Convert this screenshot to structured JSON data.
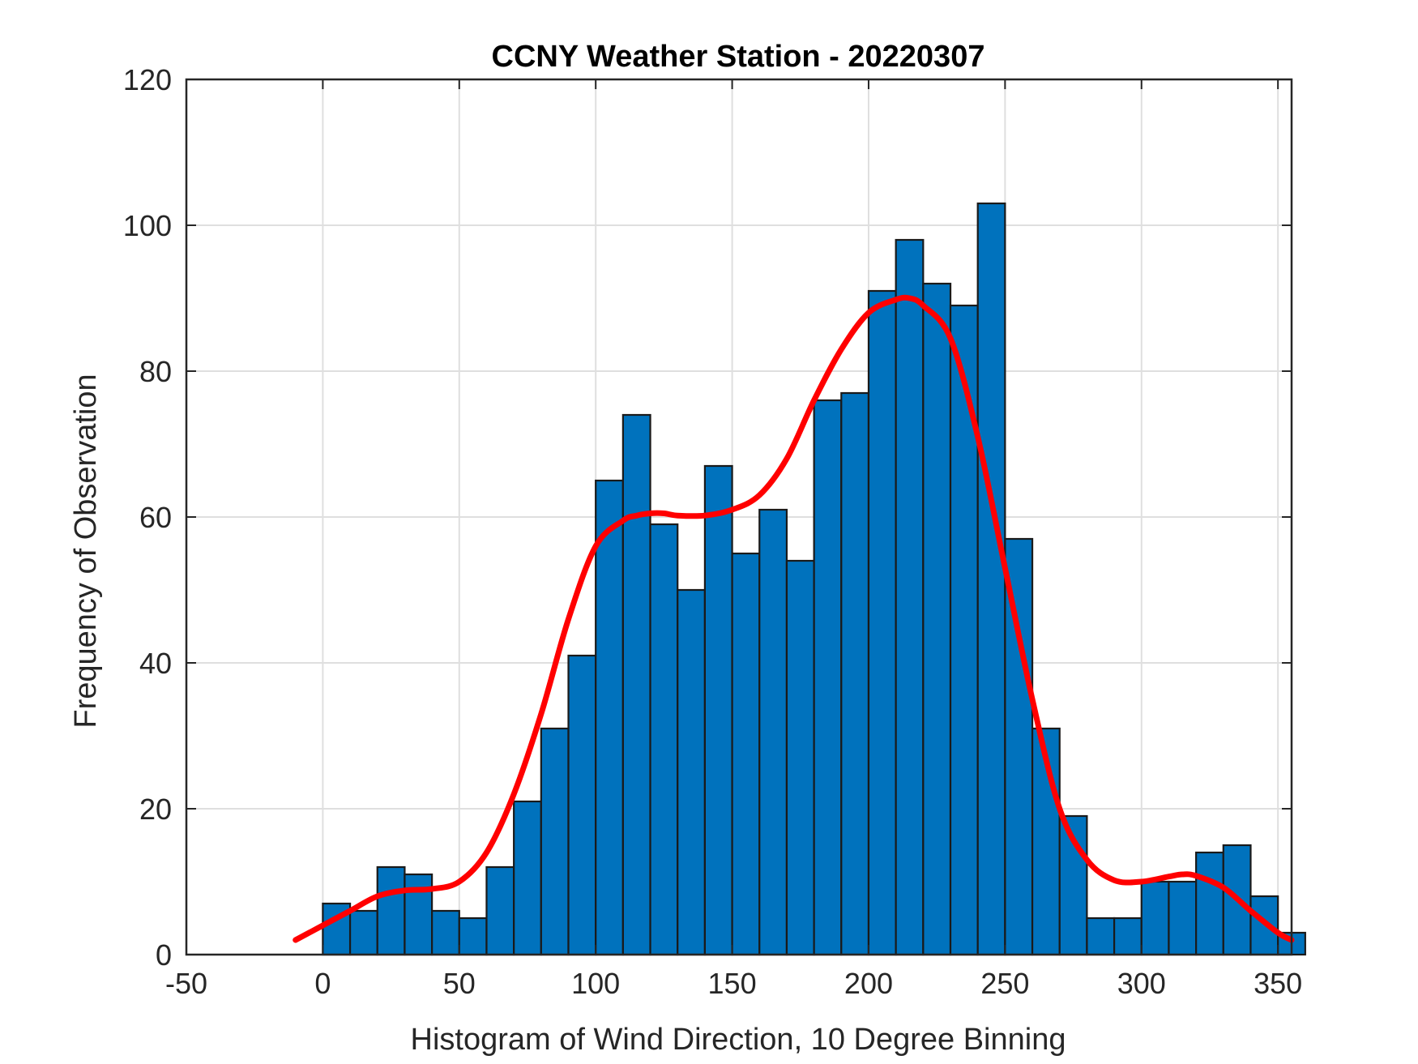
{
  "chart_data": {
    "type": "bar",
    "title": "CCNY Weather Station - 20220307",
    "xlabel": "Histogram of Wind Direction, 10 Degree Binning",
    "ylabel": "Frequency of Observation",
    "xlim": [
      -50,
      355
    ],
    "ylim": [
      0,
      120
    ],
    "xticks": [
      -50,
      0,
      50,
      100,
      150,
      200,
      250,
      300,
      350
    ],
    "yticks": [
      0,
      20,
      40,
      60,
      80,
      100,
      120
    ],
    "grid": true,
    "bin_width": 10,
    "bin_edges_start": 0,
    "values": [
      7,
      6,
      12,
      11,
      6,
      5,
      12,
      21,
      31,
      41,
      65,
      74,
      59,
      50,
      67,
      55,
      61,
      54,
      76,
      77,
      91,
      98,
      92,
      89,
      103,
      57,
      31,
      19,
      5,
      5,
      10,
      10,
      14,
      15,
      8,
      3
    ],
    "bar_color": "#0072BD",
    "fit_color": "#FF0000",
    "fit_curve": {
      "x": [
        -10,
        0,
        10,
        20,
        30,
        40,
        50,
        60,
        70,
        80,
        90,
        100,
        110,
        115,
        120,
        125,
        130,
        140,
        150,
        160,
        170,
        180,
        190,
        200,
        210,
        215,
        220,
        230,
        240,
        250,
        260,
        270,
        280,
        290,
        300,
        310,
        315,
        320,
        330,
        340,
        350,
        355
      ],
      "y": [
        2,
        4,
        6,
        8,
        8.8,
        9,
        10,
        14,
        22,
        33,
        46,
        56,
        59.5,
        60.2,
        60.5,
        60.5,
        60.2,
        60.2,
        61,
        63,
        68,
        76,
        83,
        88,
        89.8,
        90,
        89,
        84.5,
        71,
        53,
        35,
        20,
        13,
        10.2,
        10,
        10.7,
        11,
        10.8,
        9.2,
        6,
        3,
        2
      ]
    }
  }
}
